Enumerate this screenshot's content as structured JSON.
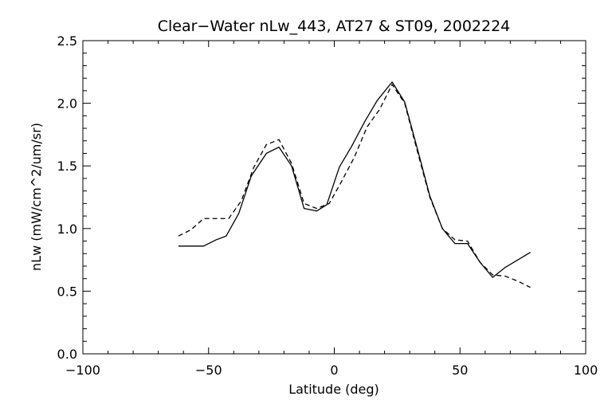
{
  "chart_data": {
    "type": "line",
    "title": "Clear−Water nLw_443, AT27 & ST09, 2002224",
    "xlabel": "Latitude (deg)",
    "ylabel": "nLw (mW/cm^2/um/sr)",
    "xlim": [
      -100,
      100
    ],
    "ylim": [
      0.0,
      2.5
    ],
    "xticks": [
      -100,
      -50,
      0,
      50,
      100
    ],
    "xtick_labels": [
      "−100",
      "−50",
      "0",
      "50",
      "100"
    ],
    "yticks": [
      0.0,
      0.5,
      1.0,
      1.5,
      2.0,
      2.5
    ],
    "ytick_labels": [
      "0.0",
      "0.5",
      "1.0",
      "1.5",
      "2.0",
      "2.5"
    ],
    "grid": false,
    "series": [
      {
        "style": "solid",
        "color": "#000000",
        "points": [
          [
            -62,
            0.86
          ],
          [
            -52,
            0.86
          ],
          [
            -47,
            0.91
          ],
          [
            -43,
            0.94
          ],
          [
            -38,
            1.12
          ],
          [
            -33,
            1.42
          ],
          [
            -27,
            1.6
          ],
          [
            -22,
            1.65
          ],
          [
            -17,
            1.5
          ],
          [
            -12,
            1.16
          ],
          [
            -7,
            1.14
          ],
          [
            -3,
            1.19
          ],
          [
            2,
            1.49
          ],
          [
            7,
            1.66
          ],
          [
            12,
            1.85
          ],
          [
            17,
            2.02
          ],
          [
            23,
            2.17
          ],
          [
            28,
            2.01
          ],
          [
            33,
            1.64
          ],
          [
            38,
            1.26
          ],
          [
            43,
            1.0
          ],
          [
            48,
            0.88
          ],
          [
            53,
            0.88
          ],
          [
            58,
            0.73
          ],
          [
            63,
            0.61
          ],
          [
            68,
            0.69
          ],
          [
            78,
            0.81
          ]
        ]
      },
      {
        "style": "dashed",
        "color": "#000000",
        "points": [
          [
            -62,
            0.94
          ],
          [
            -57,
            0.99
          ],
          [
            -52,
            1.08
          ],
          [
            -42,
            1.08
          ],
          [
            -37,
            1.22
          ],
          [
            -32,
            1.49
          ],
          [
            -27,
            1.67
          ],
          [
            -22,
            1.71
          ],
          [
            -17,
            1.52
          ],
          [
            -12,
            1.2
          ],
          [
            -7,
            1.16
          ],
          [
            -2,
            1.2
          ],
          [
            3,
            1.38
          ],
          [
            8,
            1.57
          ],
          [
            13,
            1.81
          ],
          [
            18,
            1.95
          ],
          [
            23,
            2.15
          ],
          [
            28,
            2.0
          ],
          [
            33,
            1.62
          ],
          [
            38,
            1.25
          ],
          [
            43,
            1.0
          ],
          [
            48,
            0.91
          ],
          [
            53,
            0.9
          ],
          [
            58,
            0.73
          ],
          [
            63,
            0.63
          ],
          [
            68,
            0.62
          ],
          [
            73,
            0.58
          ],
          [
            78,
            0.53
          ]
        ]
      }
    ]
  }
}
